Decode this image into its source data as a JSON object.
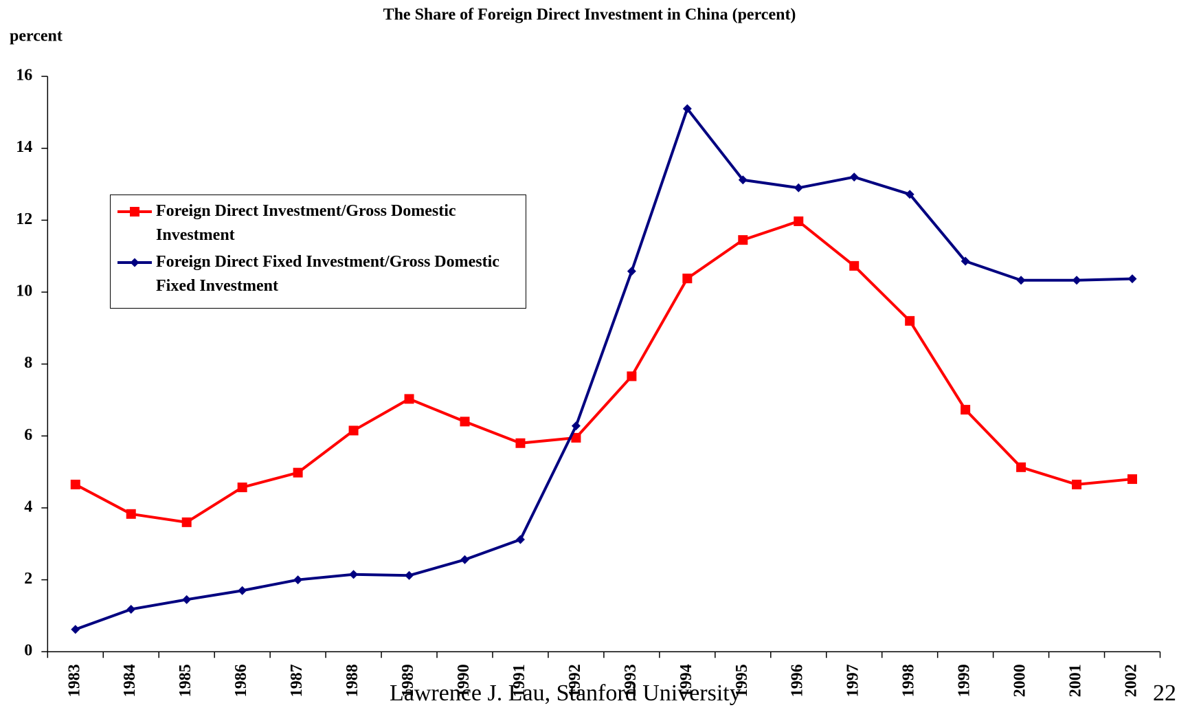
{
  "chart_data": {
    "type": "line",
    "title": "The Share of Foreign Direct Investment in China (percent)",
    "y_axis_label": "percent",
    "categories": [
      "1983",
      "1984",
      "1985",
      "1986",
      "1987",
      "1988",
      "1989",
      "1990",
      "1991",
      "1992",
      "1993",
      "1994",
      "1995",
      "1996",
      "1997",
      "1998",
      "1999",
      "2000",
      "2001",
      "2002"
    ],
    "series": [
      {
        "name": "Foreign Direct Investment/Gross Domestic Investment",
        "color": "#ff0000",
        "marker": "square",
        "values": [
          4.65,
          3.83,
          3.6,
          4.57,
          4.98,
          6.15,
          7.03,
          6.4,
          5.8,
          5.95,
          7.66,
          10.38,
          11.45,
          11.97,
          10.73,
          9.2,
          6.73,
          5.13,
          4.65,
          4.8
        ]
      },
      {
        "name": "Foreign Direct Fixed Investment/Gross Domestic Fixed Investment",
        "color": "#000080",
        "marker": "diamond",
        "values": [
          0.62,
          1.18,
          1.45,
          1.7,
          2.0,
          2.15,
          2.12,
          2.56,
          3.12,
          6.28,
          10.58,
          15.1,
          13.12,
          12.9,
          13.2,
          12.72,
          10.86,
          10.33,
          10.33,
          10.37
        ]
      }
    ],
    "ylim": [
      0,
      16
    ],
    "yticks": [
      0,
      2,
      4,
      6,
      8,
      10,
      12,
      14,
      16
    ],
    "grid": false,
    "legend": "upper left"
  },
  "footer": {
    "author": "Lawrence J. Lau, Stanford University",
    "page": "22"
  }
}
